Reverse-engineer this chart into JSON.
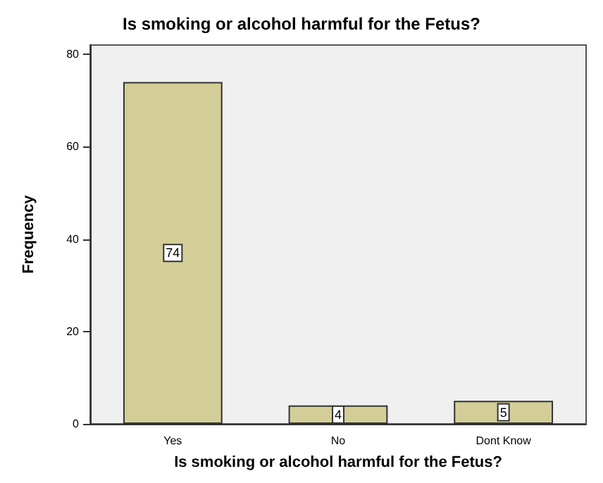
{
  "chart_data": {
    "type": "bar",
    "title": "Is smoking or alcohol harmful for the Fetus?",
    "xlabel": "Is smoking or alcohol harmful for the Fetus?",
    "ylabel": "Frequency",
    "categories": [
      "Yes",
      "No",
      "Dont Know"
    ],
    "series": [
      {
        "color": "#d3ce97",
        "values": [
          74,
          4,
          5
        ]
      }
    ],
    "data_labels": true,
    "ylim": [
      0,
      82
    ],
    "yticks": [
      0,
      20,
      40,
      60,
      80
    ],
    "grid": false
  }
}
